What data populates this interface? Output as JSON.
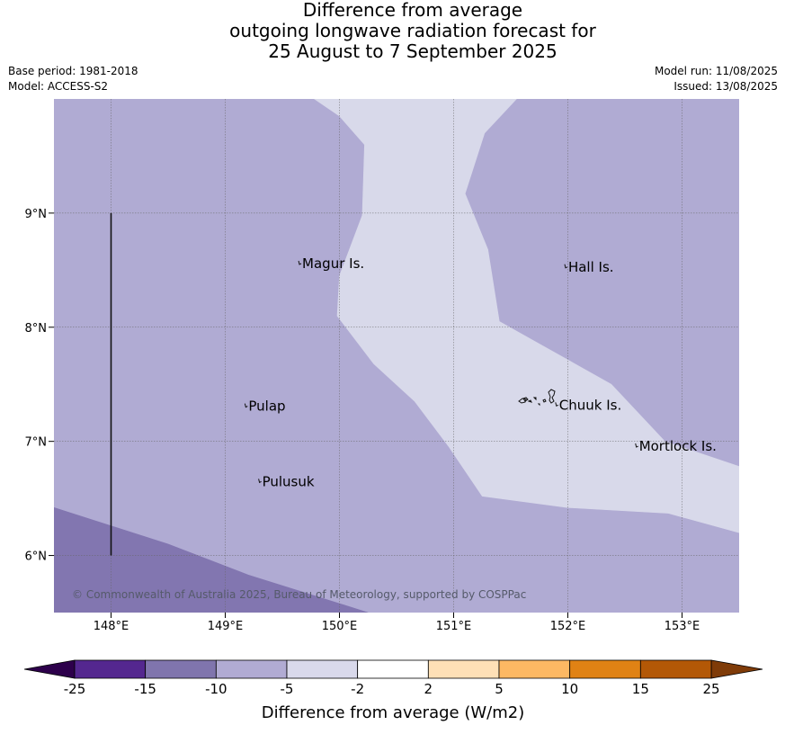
{
  "title": {
    "line1": "Difference from average",
    "line2": "outgoing longwave radiation forecast for",
    "line3": "25 August to 7 September 2025"
  },
  "meta": {
    "base_period": "Base period: 1981-2018",
    "model": "Model: ACCESS-S2",
    "model_run": "Model run: 11/08/2025",
    "issued": "Issued: 13/08/2025"
  },
  "map": {
    "lon_range": [
      147.5,
      153.5
    ],
    "lat_range": [
      5.5,
      10.0
    ],
    "lon_ticks": [
      {
        "value": 148,
        "label": "148°E"
      },
      {
        "value": 149,
        "label": "149°E"
      },
      {
        "value": 150,
        "label": "150°E"
      },
      {
        "value": 151,
        "label": "151°E"
      },
      {
        "value": 152,
        "label": "152°E"
      },
      {
        "value": 153,
        "label": "153°E"
      }
    ],
    "lat_ticks": [
      {
        "value": 9,
        "label": "9°N"
      },
      {
        "value": 8,
        "label": "8°N"
      },
      {
        "value": 7,
        "label": "7°N"
      },
      {
        "value": 6,
        "label": "6°N"
      }
    ],
    "places": [
      {
        "name": "Magur Is.",
        "lon": 149.65,
        "lat": 8.55
      },
      {
        "name": "Hall Is.",
        "lon": 151.98,
        "lat": 8.52
      },
      {
        "name": "Pulap",
        "lon": 149.18,
        "lat": 7.3
      },
      {
        "name": "Chuuk Is.",
        "lon": 151.9,
        "lat": 7.31
      },
      {
        "name": "Mortlock Is.",
        "lon": 152.6,
        "lat": 6.95
      },
      {
        "name": "Pulusuk",
        "lon": 149.3,
        "lat": 6.64
      }
    ],
    "boundary_line": {
      "lon": 148,
      "lat_from": 6,
      "lat_to": 9
    },
    "copyright": "© Commonwealth of Australia 2025, Bureau of Meteorology, supported by COSPPac",
    "regions": [
      {
        "category": "-10 to -5",
        "color": "#b0abd3",
        "polygon": [
          [
            147.5,
            10
          ],
          [
            153.5,
            10
          ],
          [
            153.5,
            5.5
          ],
          [
            147.5,
            5.5
          ]
        ]
      },
      {
        "category": "-5 to -2",
        "color": "#d8d9ea",
        "polygon": [
          [
            149.78,
            10
          ],
          [
            151.55,
            10
          ],
          [
            151.27,
            9.7
          ],
          [
            151.1,
            9.17
          ],
          [
            151.3,
            8.68
          ],
          [
            151.4,
            8.05
          ],
          [
            152.38,
            7.5
          ],
          [
            152.85,
            7.0
          ],
          [
            153.5,
            6.78
          ],
          [
            153.5,
            6.2
          ],
          [
            152.88,
            6.37
          ],
          [
            152.0,
            6.42
          ],
          [
            151.25,
            6.52
          ],
          [
            150.96,
            6.95
          ],
          [
            150.66,
            7.35
          ],
          [
            150.3,
            7.68
          ],
          [
            149.98,
            8.1
          ],
          [
            150.0,
            8.45
          ],
          [
            150.2,
            8.98
          ],
          [
            150.22,
            9.6
          ],
          [
            150.0,
            9.85
          ]
        ]
      },
      {
        "category": "-15 to -10",
        "color": "#8276b0",
        "polygon": [
          [
            147.5,
            6.42
          ],
          [
            148.5,
            6.1
          ],
          [
            149.2,
            5.83
          ],
          [
            150.25,
            5.5
          ],
          [
            147.5,
            5.5
          ]
        ]
      }
    ]
  },
  "colorbar": {
    "title": "Difference from average (W/m2)",
    "labels": [
      "-25",
      "-15",
      "-10",
      "-5",
      "-2",
      "2",
      "5",
      "10",
      "15",
      "25"
    ],
    "colors": [
      "#54278f",
      "#8075ad",
      "#b1abd3",
      "#d9d9eb",
      "#ffffff",
      "#fee0b6",
      "#fdb863",
      "#e08214",
      "#b35806"
    ],
    "extend_low_color": "#2d004b",
    "extend_high_color": "#7f3b08"
  }
}
